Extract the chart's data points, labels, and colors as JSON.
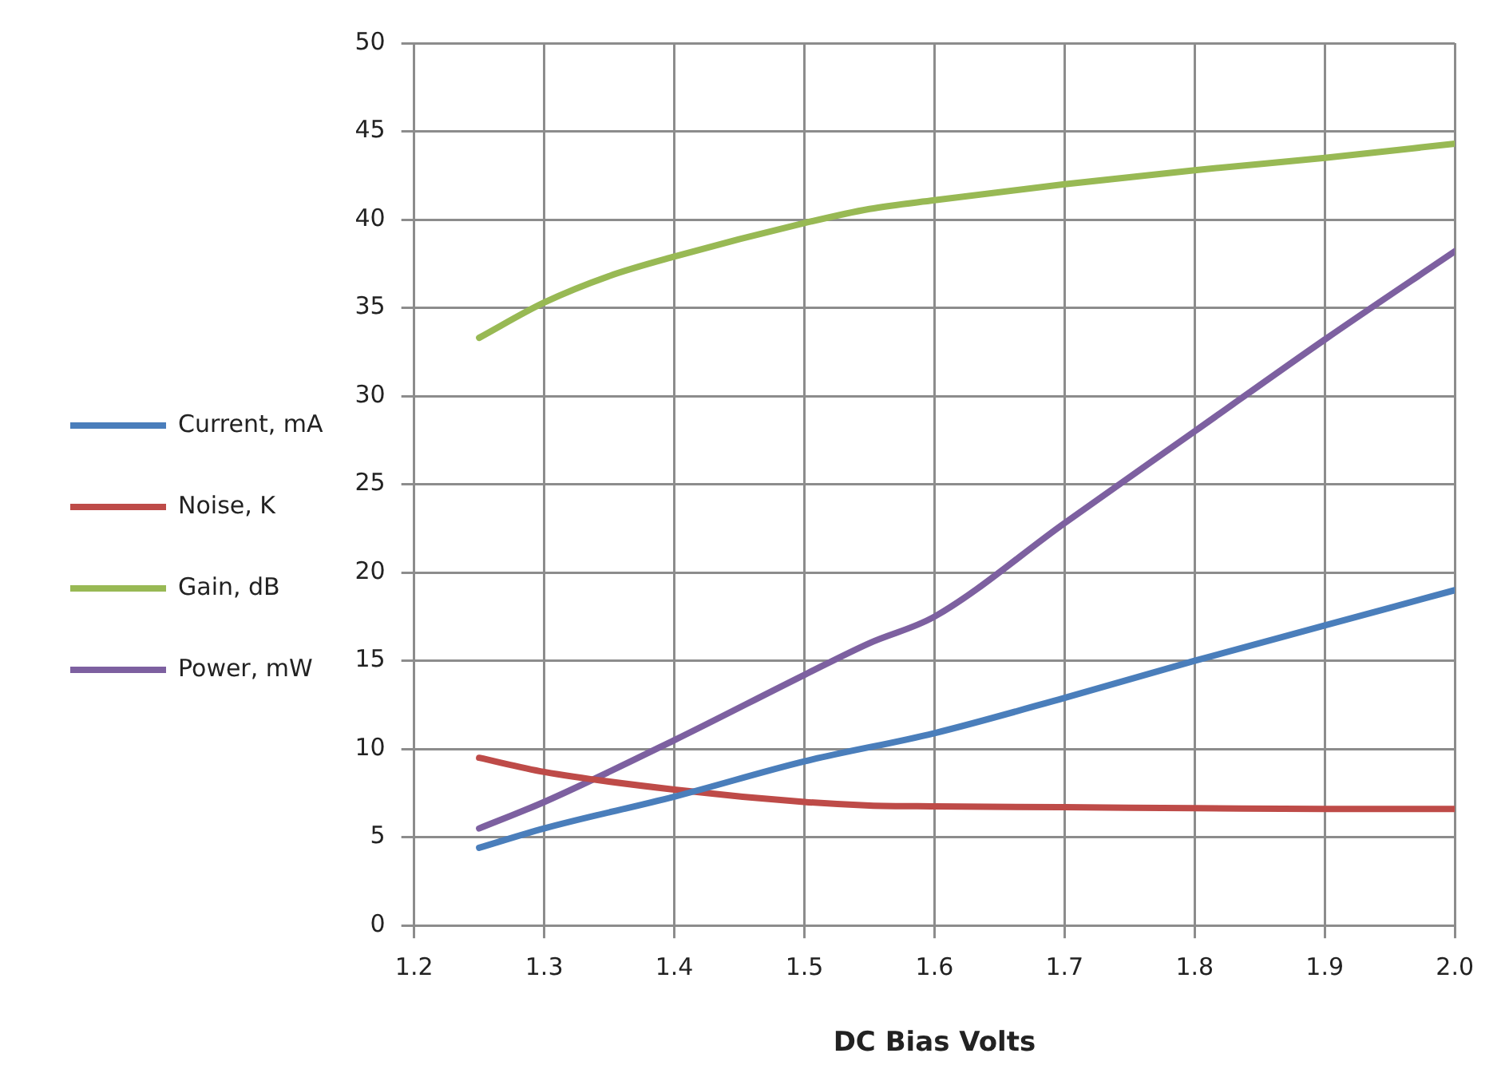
{
  "chart_data": {
    "type": "line",
    "xlabel": "DC Bias Volts",
    "xlim": [
      1.2,
      2.0
    ],
    "xticks": [
      {
        "value": 1.2,
        "label": "1.2"
      },
      {
        "value": 1.3,
        "label": "1.3"
      },
      {
        "value": 1.4,
        "label": "1.4"
      },
      {
        "value": 1.5,
        "label": "1.5"
      },
      {
        "value": 1.6,
        "label": "1.6"
      },
      {
        "value": 1.7,
        "label": "1.7"
      },
      {
        "value": 1.8,
        "label": "1.8"
      },
      {
        "value": 1.9,
        "label": "1.9"
      },
      {
        "value": 2.0,
        "label": "2.0"
      }
    ],
    "ylim": [
      0,
      50
    ],
    "yticks": [
      0,
      5,
      10,
      15,
      20,
      25,
      30,
      35,
      40,
      45,
      50
    ],
    "grid": true,
    "legend": "left",
    "marker": "none",
    "line_style": "solid",
    "series": [
      {
        "name": "Current, mA",
        "color": "#4a7ebb",
        "x": [
          1.25,
          1.3,
          1.4,
          1.5,
          1.6,
          1.7,
          1.8,
          1.9,
          2.0
        ],
        "values": [
          4.4,
          5.5,
          7.3,
          9.3,
          10.9,
          12.9,
          15.0,
          17.0,
          19.0
        ]
      },
      {
        "name": "Noise, K",
        "color": "#be4b48",
        "x": [
          1.25,
          1.3,
          1.4,
          1.5,
          1.55,
          1.6,
          1.7,
          1.8,
          1.9,
          2.0
        ],
        "values": [
          9.5,
          8.7,
          7.7,
          7.0,
          6.8,
          6.75,
          6.7,
          6.65,
          6.6,
          6.6
        ]
      },
      {
        "name": "Gain, dB",
        "color": "#98b954",
        "x": [
          1.25,
          1.3,
          1.35,
          1.4,
          1.5,
          1.55,
          1.6,
          1.7,
          1.8,
          1.9,
          2.0
        ],
        "values": [
          33.3,
          35.3,
          36.8,
          37.9,
          39.8,
          40.6,
          41.1,
          42.0,
          42.8,
          43.5,
          44.3
        ]
      },
      {
        "name": "Power, mW",
        "color": "#7d60a0",
        "x": [
          1.25,
          1.3,
          1.4,
          1.5,
          1.55,
          1.6,
          1.7,
          1.8,
          1.9,
          2.0
        ],
        "values": [
          5.5,
          7.0,
          10.5,
          14.2,
          16.0,
          17.5,
          22.8,
          28.0,
          33.2,
          38.2
        ]
      }
    ]
  }
}
